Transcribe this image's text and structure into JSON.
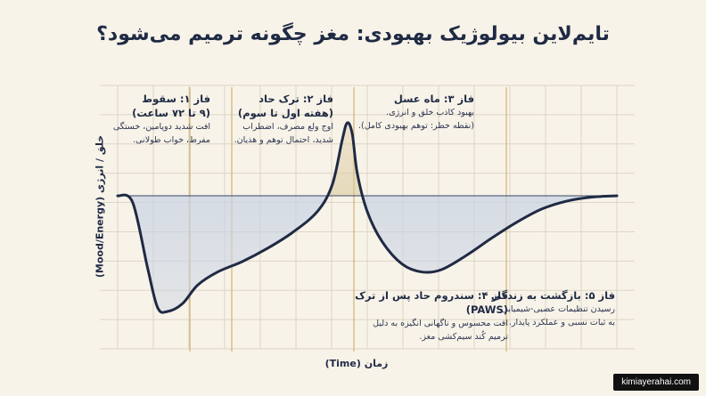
{
  "title": "تایم‌لاین بیولوژیک بهبودی: مغز چگونه ترمیم می‌شود؟",
  "watermark": "kimiayerahai.com",
  "colors": {
    "background": "#f8f3e9",
    "curve": "#1f2a44",
    "fill_below": "#c9d3e3",
    "fill_above": "#d9c79a",
    "grid": "#ddd5c4",
    "phase_line": "#c9a65a"
  },
  "chart_data": {
    "type": "area",
    "xlabel": "زمان (Time)",
    "ylabel": "خلق / انرژی (Mood/Energy)",
    "grid": true,
    "baseline": 0,
    "x": [
      0,
      3,
      6,
      8,
      10,
      13,
      16,
      20,
      25,
      30,
      35,
      40,
      43,
      45,
      46,
      47,
      48,
      50,
      53,
      57,
      61,
      65,
      70,
      75,
      80,
      85,
      90,
      95,
      100
    ],
    "values": [
      0,
      -5,
      -55,
      -85,
      -88,
      -82,
      -68,
      -58,
      -50,
      -40,
      -28,
      -12,
      10,
      50,
      65,
      55,
      20,
      -12,
      -35,
      -52,
      -58,
      -56,
      -45,
      -32,
      -20,
      -10,
      -4,
      -1,
      0
    ],
    "ylim": [
      -100,
      100
    ],
    "xlim": [
      0,
      100
    ]
  },
  "phases": [
    {
      "title": "فاز ۱: سقوط",
      "subtitle": "(۹ تا ۷۲ ساعت)",
      "lines": [
        "افت شدید دوپامین، خستگی",
        "مفرط، خواب طولانی."
      ]
    },
    {
      "title": "فاز ۲: ترک حاد",
      "subtitle": "(هفته اول تا سوم)",
      "lines": [
        "اوج ولع مصرف، اضطراب",
        "شدید، احتمال توهم و هذیان."
      ]
    },
    {
      "title": "فاز ۳: ماه عسل",
      "subtitle": "",
      "lines": [
        "بهبود کاذب خلق و انرژی.",
        "(نقطه خطر: توهم بهبودی کامل)."
      ]
    },
    {
      "title": "فاز ۴: سندروم حاد پس از ترک (PAWS)",
      "subtitle": "",
      "lines": [
        "افت محسوس و ناگهانی انگیزه به دلیل",
        "ترمیم کُند سیم‌کشی مغز."
      ]
    },
    {
      "title": "فاز ۵: بازگشت به زندگی",
      "subtitle": "",
      "lines": [
        "رسیدن تنظیمات عصبی-شیمیایی",
        "به ثبات نسبی و عملکرد پایدار."
      ]
    }
  ]
}
